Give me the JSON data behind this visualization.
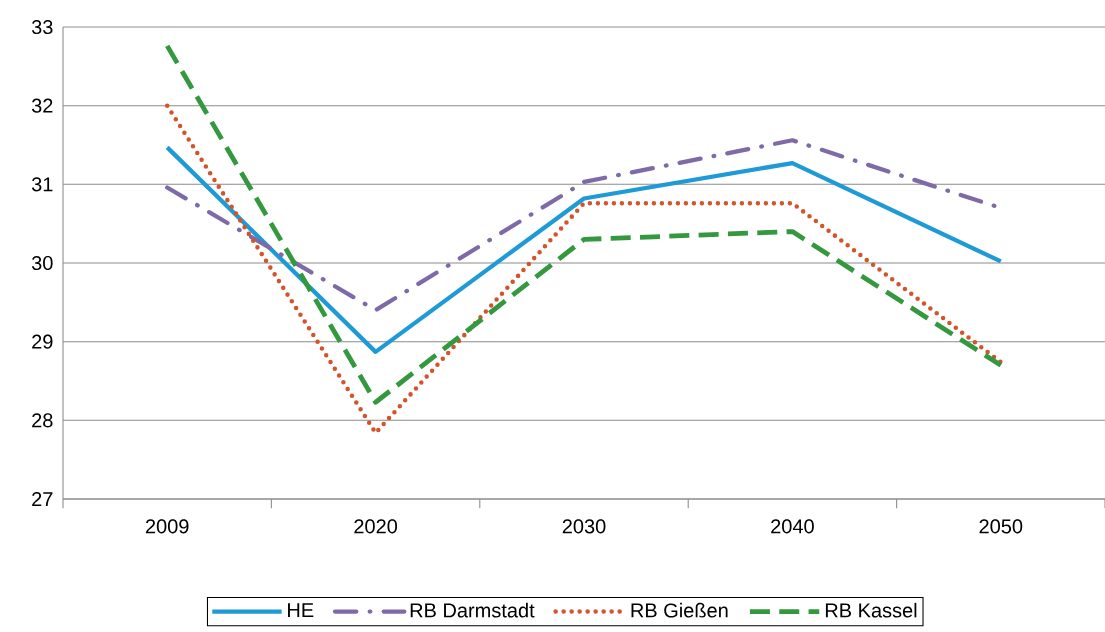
{
  "chart_data": {
    "type": "line",
    "categories": [
      "2009",
      "2020",
      "2030",
      "2040",
      "2050"
    ],
    "series": [
      {
        "name": "HE",
        "color": "#1e9ad6",
        "line_style": "solid",
        "values": [
          31.47,
          28.87,
          30.82,
          31.27,
          30.02
        ]
      },
      {
        "name": "RB Darmstadt",
        "color": "#7f6aa8",
        "line_style": "dashdot",
        "values": [
          30.96,
          29.4,
          31.03,
          31.56,
          30.7
        ]
      },
      {
        "name": "RB Gießen",
        "color": "#d1552b",
        "line_style": "dotted",
        "values": [
          32.0,
          27.84,
          30.76,
          30.76,
          28.74
        ]
      },
      {
        "name": "RB Kassel",
        "color": "#34983f",
        "line_style": "dashed",
        "values": [
          32.76,
          28.23,
          30.3,
          30.4,
          28.7
        ]
      }
    ],
    "ylim": [
      27,
      33
    ],
    "yticks": [
      27,
      28,
      29,
      30,
      31,
      32,
      33
    ],
    "grid": "y",
    "legend": "bottom"
  }
}
